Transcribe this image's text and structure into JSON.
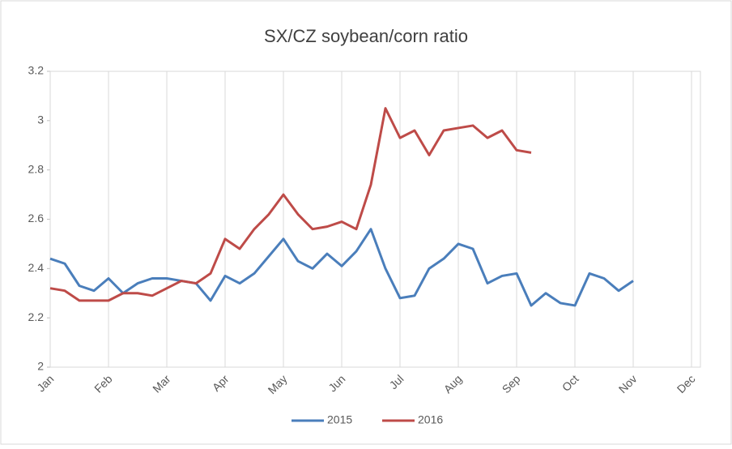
{
  "chart_data": {
    "type": "line",
    "title": "SX/CZ soybean/corn  ratio",
    "categories": [
      "Jan",
      null,
      null,
      null,
      "Feb",
      null,
      null,
      null,
      "Mar",
      null,
      null,
      null,
      "Apr",
      null,
      null,
      null,
      "May",
      null,
      null,
      null,
      "Jun",
      null,
      null,
      null,
      "Jul",
      null,
      null,
      null,
      "Aug",
      null,
      null,
      null,
      "Sep",
      null,
      null,
      null,
      "Oct",
      null,
      null,
      null,
      "Nov",
      null,
      null,
      null,
      "Dec"
    ],
    "series": [
      {
        "name": "2015",
        "color": "#4a7ebb",
        "values": [
          2.44,
          2.42,
          2.33,
          2.31,
          2.36,
          2.3,
          2.34,
          2.36,
          2.36,
          2.35,
          2.34,
          2.27,
          2.37,
          2.34,
          2.38,
          2.45,
          2.52,
          2.43,
          2.4,
          2.46,
          2.41,
          2.47,
          2.56,
          2.4,
          2.28,
          2.29,
          2.4,
          2.44,
          2.5,
          2.48,
          2.34,
          2.37,
          2.38,
          2.25,
          2.3,
          2.26,
          2.25,
          2.38,
          2.36,
          2.31,
          2.35,
          null,
          null,
          null,
          null
        ]
      },
      {
        "name": "2016",
        "color": "#be4b48",
        "values": [
          2.32,
          2.31,
          2.27,
          2.27,
          2.27,
          2.3,
          2.3,
          2.29,
          2.32,
          2.35,
          2.34,
          2.38,
          2.52,
          2.48,
          2.56,
          2.62,
          2.7,
          2.62,
          2.56,
          2.57,
          2.59,
          2.56,
          2.74,
          3.05,
          2.93,
          2.96,
          2.86,
          2.96,
          2.97,
          2.98,
          2.93,
          2.96,
          2.88,
          2.87,
          null,
          null,
          null,
          null,
          null,
          null,
          null,
          null,
          null,
          null,
          null
        ]
      }
    ],
    "ylim": [
      2,
      3.2
    ],
    "yticks": [
      2,
      2.2,
      2.4,
      2.6,
      2.8,
      3,
      3.2
    ],
    "grid": true,
    "legend": "bottom"
  }
}
